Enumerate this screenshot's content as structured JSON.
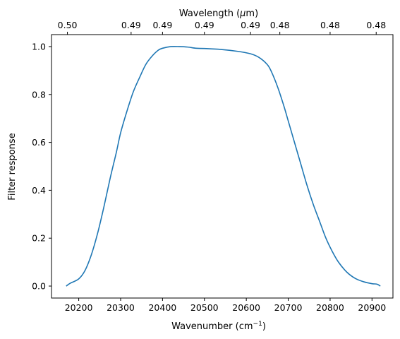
{
  "chart_data": {
    "type": "line",
    "xlabel": "Wavenumber (cm",
    "xlabel_sup": "−1",
    "xlabel_suffix": ")",
    "ylabel": "Filter response",
    "top_xlabel": "Wavelength (",
    "top_xlabel_mu": "μ",
    "top_xlabel_suffix": "m)",
    "xlim": [
      20135,
      20950
    ],
    "ylim": [
      -0.05,
      1.05
    ],
    "xticks": [
      20200,
      20300,
      20400,
      20500,
      20600,
      20700,
      20800,
      20900
    ],
    "yticks": [
      0.0,
      0.2,
      0.4,
      0.6,
      0.8,
      1.0
    ],
    "top_ticks": [
      {
        "x": 20173,
        "label": "0.50"
      },
      {
        "x": 20325,
        "label": "0.49"
      },
      {
        "x": 20400,
        "label": "0.49"
      },
      {
        "x": 20500,
        "label": "0.49"
      },
      {
        "x": 20610,
        "label": "0.49"
      },
      {
        "x": 20680,
        "label": "0.48"
      },
      {
        "x": 20800,
        "label": "0.48"
      },
      {
        "x": 20910,
        "label": "0.48"
      }
    ],
    "color": "#1f77b4",
    "grid": false,
    "series": [
      {
        "x": [
          20170,
          20180,
          20200,
          20215,
          20230,
          20245,
          20260,
          20275,
          20290,
          20300,
          20315,
          20330,
          20345,
          20360,
          20375,
          20390,
          20400,
          20420,
          20440,
          20460,
          20480,
          20500,
          20540,
          20580,
          20610,
          20630,
          20650,
          20660,
          20675,
          20690,
          20700,
          20715,
          20730,
          20745,
          20760,
          20775,
          20790,
          20805,
          20820,
          20840,
          20860,
          20880,
          20900,
          20912,
          20920
        ],
        "y": [
          0.0,
          0.012,
          0.03,
          0.065,
          0.13,
          0.22,
          0.33,
          0.45,
          0.56,
          0.64,
          0.73,
          0.81,
          0.87,
          0.925,
          0.96,
          0.985,
          0.993,
          1.0,
          1.0,
          0.998,
          0.993,
          0.992,
          0.988,
          0.98,
          0.97,
          0.955,
          0.925,
          0.895,
          0.83,
          0.75,
          0.69,
          0.6,
          0.51,
          0.42,
          0.34,
          0.27,
          0.2,
          0.145,
          0.1,
          0.058,
          0.032,
          0.018,
          0.01,
          0.008,
          0.0
        ]
      }
    ]
  }
}
